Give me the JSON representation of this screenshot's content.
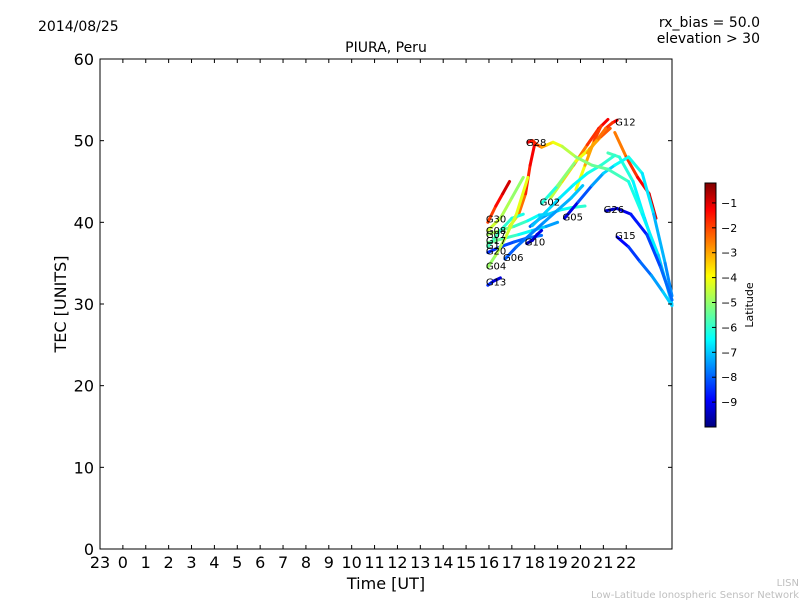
{
  "header": {
    "date": "2014/08/25",
    "rx_bias": "rx_bias = 50.0",
    "elevation": "elevation > 30"
  },
  "footer": {
    "line1": "LISN",
    "line2": "Low-Latitude Ionospheric Sensor Network"
  },
  "colorbar": {
    "label": "Latitude",
    "range": [
      -10,
      -0.2
    ],
    "ticks": [
      -1,
      -2,
      -3,
      -4,
      -5,
      -6,
      -7,
      -8,
      -9
    ],
    "tick_labels": [
      "−1",
      "−2",
      "−3",
      "−4",
      "−5",
      "−6",
      "−7",
      "−8",
      "−9"
    ]
  },
  "chart_data": {
    "type": "scatter",
    "title": "PIURA, Peru",
    "xlabel": "Time [UT]",
    "ylabel": "TEC [UNITS]",
    "xlim": [
      23,
      48
    ],
    "ylim": [
      0,
      60
    ],
    "x_ticks": [
      23,
      24,
      25,
      26,
      27,
      28,
      29,
      30,
      31,
      32,
      33,
      34,
      35,
      36,
      37,
      38,
      39,
      40,
      41,
      42,
      43,
      44,
      45,
      46
    ],
    "x_tick_labels": [
      "23",
      "0",
      "1",
      "2",
      "3",
      "4",
      "5",
      "6",
      "7",
      "8",
      "9",
      "10",
      "11",
      "12",
      "13",
      "14",
      "15",
      "16",
      "17",
      "18",
      "19",
      "20",
      "21",
      "22"
    ],
    "y_ticks": [
      0,
      10,
      20,
      30,
      40,
      50,
      60
    ],
    "y_tick_labels": [
      "0",
      "10",
      "20",
      "30",
      "40",
      "50",
      "60"
    ],
    "colorscale": "jet",
    "color_variable": "latitude",
    "series": [
      {
        "name": "G30",
        "label_at": [
          39.95,
          40.2
        ],
        "x": [
          39.95,
          40.3,
          40.6,
          40.9
        ],
        "y": [
          40.0,
          42.0,
          43.5,
          45.0
        ],
        "lat": [
          -2.2,
          -1.8,
          -1.2,
          -0.8
        ]
      },
      {
        "name": "G08",
        "label_at": [
          39.95,
          38.8
        ],
        "x": [
          39.95,
          40.5,
          41.0,
          41.5
        ],
        "y": [
          39.0,
          40.5,
          43.0,
          45.5
        ],
        "lat": [
          -4.2,
          -4.5,
          -4.8,
          -5.0
        ]
      },
      {
        "name": "G07",
        "label_at": [
          39.95,
          38.3
        ],
        "x": [
          39.95,
          40.5,
          41.1,
          41.7,
          42.2,
          42.6
        ],
        "y": [
          38.5,
          39.0,
          39.5,
          40.2,
          40.9,
          41.0
        ],
        "lat": [
          -4.5,
          -5.0,
          -5.5,
          -6.0,
          -6.5,
          -7.0
        ]
      },
      {
        "name": "G17",
        "label_at": [
          39.95,
          37.6
        ],
        "x": [
          39.95,
          40.6,
          41.3,
          41.9,
          42.5,
          43.0
        ],
        "y": [
          37.5,
          38.0,
          38.5,
          39.0,
          39.5,
          40.0
        ],
        "lat": [
          -5.0,
          -5.5,
          -6.0,
          -6.5,
          -7.0,
          -7.5
        ]
      },
      {
        "name": "G1",
        "label_at": [
          39.95,
          37.0
        ],
        "x": [
          39.95,
          40.5,
          41.0,
          41.5
        ],
        "y": [
          37.0,
          39.0,
          40.5,
          41.0
        ],
        "lat": [
          -5.5,
          -5.8,
          -6.0,
          -6.2
        ]
      },
      {
        "name": "G20",
        "label_at": [
          39.95,
          36.3
        ],
        "x": [
          39.95,
          40.5,
          41.1,
          41.7,
          42.3
        ],
        "y": [
          36.3,
          37.0,
          37.6,
          38.1,
          38.4
        ],
        "lat": [
          -8.5,
          -8.2,
          -8.0,
          -7.8,
          -7.6
        ]
      },
      {
        "name": "G04",
        "label_at": [
          39.95,
          34.5
        ],
        "x": [
          39.95,
          40.3,
          40.7,
          41.2,
          41.7
        ],
        "y": [
          34.5,
          36.0,
          38.0,
          41.0,
          45.5
        ],
        "lat": [
          -5.0,
          -4.7,
          -4.4,
          -4.2,
          -4.0
        ]
      },
      {
        "name": "G13",
        "label_at": [
          39.95,
          32.5
        ],
        "x": [
          39.95,
          40.2,
          40.5
        ],
        "y": [
          32.3,
          32.8,
          33.2
        ],
        "lat": [
          -8.0,
          -8.8,
          -9.5
        ]
      },
      {
        "name": "G06",
        "label_at": [
          40.7,
          35.5
        ],
        "x": [
          40.7,
          41.2,
          41.8,
          42.4,
          43.0,
          43.6,
          44.1
        ],
        "y": [
          35.5,
          37.0,
          38.5,
          40.0,
          41.5,
          43.0,
          44.5
        ],
        "lat": [
          -8.0,
          -7.8,
          -7.6,
          -7.4,
          -7.2,
          -7.0,
          -6.8
        ]
      },
      {
        "name": "G10",
        "label_at": [
          41.65,
          37.4
        ],
        "x": [
          41.65,
          41.9,
          42.1,
          42.3
        ],
        "y": [
          37.4,
          37.8,
          38.5,
          39.0
        ],
        "lat": [
          -9.5,
          -9.3,
          -9.1,
          -9.0
        ]
      },
      {
        "name": "G02",
        "label_at": [
          42.3,
          42.3
        ],
        "x": [
          42.3,
          43.0,
          43.8,
          44.4,
          44.9,
          45.3
        ],
        "y": [
          42.3,
          44.5,
          47.5,
          49.0,
          50.5,
          51.5
        ],
        "lat": [
          -6.5,
          -5.5,
          -4.5,
          -3.5,
          -2.5,
          -2.0
        ]
      },
      {
        "name": "G05",
        "label_at": [
          43.3,
          40.5
        ],
        "x": [
          43.3,
          43.9,
          44.5,
          45.0,
          45.5,
          46.1,
          46.7,
          47.2,
          47.7,
          48.0
        ],
        "y": [
          40.5,
          42.5,
          44.5,
          46.0,
          47.0,
          48.0,
          46.0,
          41.0,
          35.0,
          31.0
        ],
        "lat": [
          -9.5,
          -8.5,
          -7.5,
          -7.0,
          -6.5,
          -6.0,
          -6.3,
          -6.8,
          -7.3,
          -7.6
        ]
      },
      {
        "name": "G28",
        "label_at": [
          41.7,
          49.6
        ],
        "x": [
          41.7,
          41.9,
          42.1,
          42.3,
          42.55,
          42.8,
          43.2,
          43.8,
          44.5,
          45.2,
          46.1,
          46.7,
          47.4,
          48.0
        ],
        "y": [
          49.8,
          50.0,
          49.5,
          49.2,
          49.5,
          49.8,
          49.3,
          48.0,
          47.0,
          46.5,
          45.0,
          41.0,
          36.0,
          30.0
        ],
        "lat": [
          -1.0,
          -1.5,
          -2.0,
          -2.6,
          -3.3,
          -3.8,
          -4.3,
          -4.8,
          -5.2,
          -5.5,
          -5.9,
          -6.3,
          -6.6,
          -7.0
        ]
      },
      {
        "name": "G12",
        "label_at": [
          45.6,
          52.1
        ],
        "x": [
          45.6,
          45.4,
          45.1,
          44.7,
          44.3
        ],
        "y": [
          52.5,
          52.2,
          51.5,
          50.0,
          48.5
        ],
        "lat": [
          -1.2,
          -1.6,
          -2.2,
          -2.8,
          -3.2
        ]
      },
      {
        "name": "G26",
        "label_at": [
          45.1,
          41.4
        ],
        "x": [
          45.1,
          45.6,
          46.2,
          46.9,
          47.5,
          48.0
        ],
        "y": [
          41.4,
          41.7,
          41.0,
          38.5,
          34.5,
          30.5
        ],
        "lat": [
          -9.5,
          -9.2,
          -8.8,
          -8.3,
          -7.9,
          -7.6
        ]
      },
      {
        "name": "G15",
        "label_at": [
          45.6,
          38.2
        ],
        "x": [
          45.6,
          46.1,
          46.6,
          47.1,
          47.6,
          48.0
        ],
        "y": [
          38.2,
          37.0,
          35.2,
          33.5,
          31.5,
          29.8
        ],
        "lat": [
          -9.0,
          -8.5,
          -8.0,
          -7.5,
          -7.0,
          -6.6
        ]
      }
    ],
    "extra_traces": [
      {
        "x": [
          40.9,
          41.3,
          41.6,
          41.8,
          42.0
        ],
        "y": [
          39.5,
          41.0,
          43.5,
          47.0,
          49.6
        ],
        "lat": [
          -4.0,
          -3.0,
          -2.0,
          -1.5,
          -1.2
        ]
      },
      {
        "x": [
          42.7,
          43.2,
          43.7,
          44.3,
          44.8,
          45.2
        ],
        "y": [
          43.0,
          45.0,
          47.0,
          49.5,
          51.5,
          52.6
        ],
        "lat": [
          -5.0,
          -4.0,
          -3.0,
          -2.2,
          -1.6,
          -1.1
        ]
      },
      {
        "x": [
          43.8,
          44.2,
          44.6,
          44.9
        ],
        "y": [
          44.0,
          47.0,
          50.0,
          51.8
        ],
        "lat": [
          -4.5,
          -3.5,
          -2.5,
          -1.5
        ]
      },
      {
        "x": [
          45.5,
          46.0,
          46.5,
          47.0,
          47.3
        ],
        "y": [
          51.0,
          48.0,
          45.5,
          43.5,
          40.5
        ],
        "lat": [
          -3.0,
          -2.2,
          -1.6,
          -1.2,
          -0.9
        ]
      },
      {
        "x": [
          45.2,
          45.7,
          46.3,
          46.8,
          47.4,
          48.0
        ],
        "y": [
          48.5,
          48.0,
          45.0,
          40.5,
          35.5,
          30.5
        ],
        "lat": [
          -5.5,
          -5.8,
          -6.2,
          -6.6,
          -7.0,
          -7.3
        ]
      },
      {
        "x": [
          41.8,
          42.2,
          42.6,
          43.1,
          43.6,
          44.2
        ],
        "y": [
          39.5,
          40.4,
          41.0,
          41.5,
          41.8,
          42.0
        ],
        "lat": [
          -8.0,
          -7.5,
          -7.0,
          -6.5,
          -6.0,
          -5.8
        ]
      },
      {
        "x": [
          41.9,
          42.5,
          43.1,
          43.7,
          44.3,
          44.9,
          45.5
        ],
        "y": [
          39.6,
          41.3,
          43.0,
          44.6,
          46.0,
          47.0,
          48.2
        ],
        "lat": [
          -7.0,
          -6.8,
          -6.6,
          -6.4,
          -6.2,
          -6.0,
          -5.8
        ]
      }
    ]
  }
}
